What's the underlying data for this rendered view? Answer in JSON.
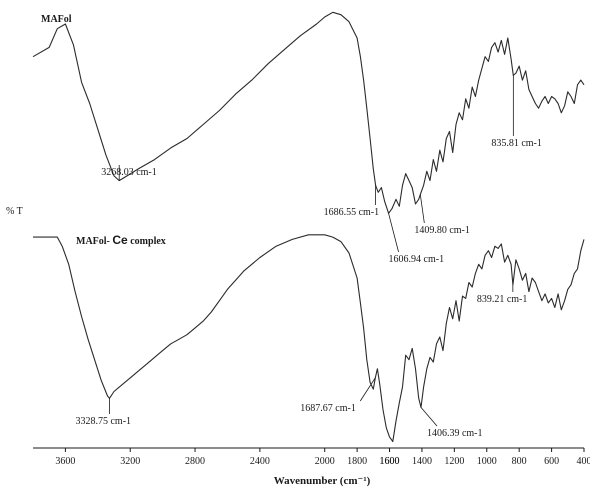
{
  "chart_data": {
    "type": "line",
    "title": "",
    "ylabel": "% T",
    "xlabel": "Wavenumber (cm⁻¹)",
    "x_reversed": true,
    "xlim": [
      3800,
      400
    ],
    "grid": false,
    "legend": "none",
    "xticks": [
      "3600",
      "3200",
      "2800",
      "2400",
      "2000",
      "1600",
      "1800",
      "1600",
      "1400",
      "1200",
      "1000",
      "800",
      "600",
      "400"
    ],
    "xtick_values": [
      3600,
      3200,
      2800,
      2400,
      2000,
      1600,
      1800,
      1600,
      1400,
      1200,
      1000,
      800,
      600,
      400
    ],
    "series": [
      {
        "name": "MAFol",
        "label_parts": [
          "MAFol"
        ],
        "x": [
          3800,
          3700,
          3650,
          3600,
          3550,
          3500,
          3450,
          3400,
          3350,
          3300,
          3268,
          3220,
          3150,
          3050,
          2950,
          2850,
          2750,
          2650,
          2550,
          2450,
          2350,
          2250,
          2150,
          2050,
          2000,
          1950,
          1900,
          1850,
          1800,
          1780,
          1760,
          1740,
          1720,
          1700,
          1686,
          1670,
          1650,
          1630,
          1606,
          1585,
          1560,
          1540,
          1520,
          1500,
          1480,
          1460,
          1440,
          1420,
          1410,
          1390,
          1370,
          1350,
          1330,
          1310,
          1290,
          1270,
          1250,
          1230,
          1210,
          1190,
          1170,
          1150,
          1130,
          1110,
          1090,
          1070,
          1050,
          1030,
          1010,
          990,
          970,
          950,
          930,
          910,
          890,
          870,
          850,
          836,
          820,
          800,
          780,
          760,
          740,
          720,
          700,
          680,
          660,
          640,
          620,
          600,
          580,
          560,
          540,
          520,
          500,
          480,
          460,
          440,
          420,
          400
        ],
        "y": [
          62,
          66,
          74,
          76,
          67,
          51,
          42,
          31,
          20,
          11,
          9,
          11,
          14,
          18,
          23,
          27,
          33,
          39,
          46,
          52,
          59,
          65,
          71,
          76,
          79,
          81,
          80,
          77,
          70,
          62,
          52,
          40,
          27,
          14,
          7,
          4,
          6,
          0,
          -5,
          -3,
          1,
          -2,
          7,
          12,
          9,
          6,
          -1,
          1,
          3,
          7,
          13,
          9,
          18,
          13,
          22,
          17,
          27,
          30,
          21,
          33,
          38,
          35,
          44,
          40,
          49,
          45,
          52,
          57,
          62,
          60,
          66,
          68,
          64,
          69,
          63,
          70,
          61,
          54,
          55,
          58,
          52,
          56,
          48,
          45,
          42,
          40,
          43,
          45,
          42,
          45,
          44,
          42,
          38,
          41,
          47,
          45,
          42,
          50,
          52,
          50
        ]
      },
      {
        "name": "MAFol- Ce complex",
        "label_parts": [
          "MAFol- ",
          "Ce",
          " complex"
        ],
        "x": [
          3800,
          3700,
          3650,
          3620,
          3580,
          3540,
          3500,
          3460,
          3420,
          3380,
          3340,
          3328,
          3300,
          3250,
          3200,
          3150,
          3100,
          3050,
          3000,
          2950,
          2900,
          2850,
          2800,
          2750,
          2700,
          2650,
          2600,
          2550,
          2500,
          2400,
          2300,
          2200,
          2100,
          2000,
          1950,
          1900,
          1850,
          1800,
          1780,
          1760,
          1740,
          1720,
          1700,
          1688,
          1675,
          1660,
          1640,
          1620,
          1600,
          1580,
          1560,
          1540,
          1520,
          1500,
          1480,
          1460,
          1440,
          1420,
          1406,
          1390,
          1370,
          1350,
          1330,
          1310,
          1290,
          1270,
          1250,
          1230,
          1210,
          1190,
          1170,
          1150,
          1130,
          1110,
          1090,
          1070,
          1050,
          1030,
          1010,
          990,
          970,
          950,
          930,
          910,
          890,
          870,
          850,
          839,
          820,
          800,
          780,
          760,
          740,
          720,
          700,
          680,
          660,
          640,
          620,
          600,
          580,
          560,
          540,
          520,
          500,
          480,
          460,
          440,
          420,
          400
        ],
        "y": [
          76,
          76,
          76,
          72,
          64,
          52,
          41,
          31,
          22,
          13,
          6,
          5,
          8,
          11,
          14,
          17,
          20,
          23,
          26,
          29,
          31,
          33,
          36,
          39,
          43,
          48,
          53,
          57,
          61,
          67,
          72,
          75,
          77,
          77,
          76,
          74,
          69,
          58,
          47,
          36,
          22,
          12,
          9,
          14,
          18,
          11,
          0,
          -8,
          -12,
          -14,
          -5,
          3,
          10,
          24,
          22,
          27,
          18,
          5,
          1,
          10,
          18,
          23,
          21,
          29,
          32,
          26,
          38,
          45,
          40,
          48,
          39,
          50,
          49,
          56,
          54,
          60,
          64,
          62,
          68,
          70,
          67,
          72,
          71,
          73,
          65,
          68,
          64,
          55,
          66,
          62,
          57,
          60,
          52,
          58,
          56,
          52,
          48,
          51,
          47,
          49,
          45,
          51,
          44,
          48,
          53,
          55,
          60,
          62,
          70,
          75
        ]
      }
    ],
    "annotations": [
      {
        "text": "3268.03 cm-1",
        "x": 3268,
        "series": "MAFol"
      },
      {
        "text": "1686.55 cm-1",
        "x": 1686,
        "series": "MAFol"
      },
      {
        "text": "1606.94 cm-1",
        "x": 1606,
        "series": "MAFol"
      },
      {
        "text": "1409.80 cm-1",
        "x": 1410,
        "series": "MAFol"
      },
      {
        "text": "835.81 cm-1",
        "x": 836,
        "series": "MAFol"
      },
      {
        "text": "3328.75 cm-1",
        "x": 3328,
        "series": "MAFol- Ce complex"
      },
      {
        "text": "1687.67 cm-1",
        "x": 1688,
        "series": "MAFol- Ce complex"
      },
      {
        "text": "1406.39 cm-1",
        "x": 1406,
        "series": "MAFol- Ce complex"
      },
      {
        "text": "839.21 cm-1",
        "x": 839,
        "series": "MAFol- Ce complex"
      }
    ],
    "colors": {
      "line": "#2b2b2b",
      "axis": "#1a1a1a",
      "text": "#1a1a1a",
      "background": "#ffffff"
    }
  }
}
